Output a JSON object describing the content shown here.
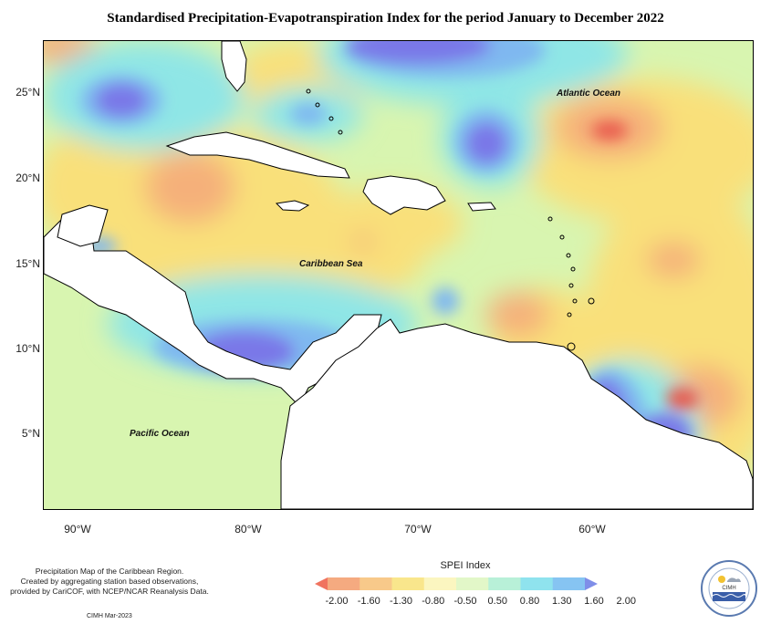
{
  "title": "Standardised Precipitation-Evapotranspiration Index for the period January to December 2022",
  "map": {
    "lat_labels": [
      "25°N",
      "20°N",
      "15°N",
      "10°N",
      "5°N"
    ],
    "lon_labels": [
      "90°W",
      "80°W",
      "70°W",
      "60°W"
    ],
    "labels": {
      "atlantic": "Atlantic Ocean",
      "caribbean": "Caribbean Sea",
      "pacific": "Pacific Ocean"
    },
    "colors": {
      "strong_dry": "#e8574c",
      "dry": "#f5b07a",
      "mild_dry": "#f9e07a",
      "near_normal": "#d8f5b0",
      "mild_wet": "#8fe6e6",
      "wet": "#7fb8f0",
      "strong_wet": "#7a78e8"
    }
  },
  "footer": {
    "line1": "Precipitation Map of the Caribbean Region.",
    "line2": "Created by aggregating station based observations,",
    "line3": "provided by CariCOF, with NCEP/NCAR Reanalysis Data.",
    "credit": "CIMH Mar-2023"
  },
  "legend": {
    "title": "SPEI Index",
    "ticks": [
      "-2.00",
      "-1.60",
      "-1.30",
      "-0.80",
      "-0.50",
      "0.50",
      "0.80",
      "1.30",
      "1.60",
      "2.00"
    ],
    "colors": [
      "#f0735f",
      "#f5aa80",
      "#f8c98a",
      "#f9e68c",
      "#fbf6c0",
      "#e2f7c8",
      "#b8f0d8",
      "#8fe3ee",
      "#86c4f2",
      "#7f8ee8"
    ]
  },
  "logo": {
    "text": "CIMH"
  }
}
